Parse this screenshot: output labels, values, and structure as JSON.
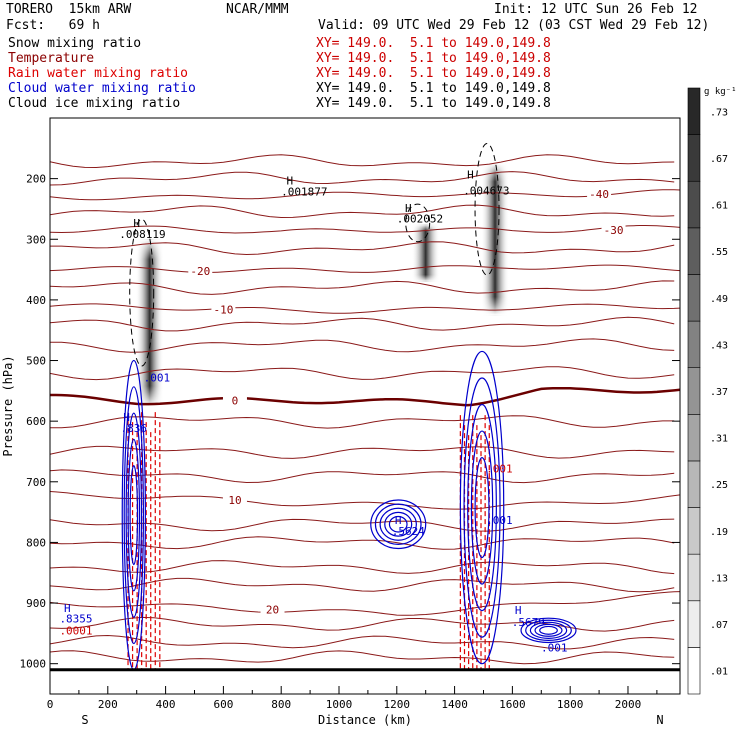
{
  "header": {
    "model": "TORERO  15km ARW",
    "org": "NCAR/MMM",
    "init": "Init: 12 UTC Sun 26 Feb 12",
    "fcst": "Fcst:   69 h",
    "valid": "Valid: 09 UTC Wed 29 Feb 12 (03 CST Wed 29 Feb 12)"
  },
  "fields": [
    {
      "name": "Snow mixing ratio",
      "xy": "XY= 149.0.  5.1 to 149.0,149.8",
      "color": "#000000",
      "xy_color": "#cc0000"
    },
    {
      "name": "Temperature",
      "xy": "XY= 149.0.  5.1 to 149.0,149.8",
      "color": "#8b0000",
      "xy_color": "#cc0000"
    },
    {
      "name": "Rain water mixing ratio",
      "xy": "XY= 149.0.  5.1 to 149.0,149.8",
      "color": "#dd0000",
      "xy_color": "#cc0000"
    },
    {
      "name": "Cloud water mixing ratio",
      "xy": "XY= 149.0.  5.1 to 149.0,149.8",
      "color": "#0000cc",
      "xy_color": "#000000"
    },
    {
      "name": "Cloud ice mixing ratio",
      "xy": "XY= 149.0.  5.1 to 149.0,149.8",
      "color": "#000000",
      "xy_color": "#000000"
    }
  ],
  "chart_data": {
    "type": "contour",
    "xlabel": "Distance (km)",
    "ylabel": "Pressure (hPa)",
    "xlim": [
      0,
      2180
    ],
    "ylim": [
      1050,
      100
    ],
    "xticks": [
      0,
      200,
      400,
      600,
      800,
      1000,
      1200,
      1400,
      1600,
      1800,
      2000
    ],
    "yticks": [
      200,
      300,
      400,
      500,
      600,
      700,
      800,
      900,
      1000
    ],
    "x_end_labels": {
      "left": "S",
      "right": "N"
    },
    "colorbar": {
      "unit": "g kg⁻¹",
      "levels": [
        ".01",
        ".07",
        ".13",
        ".19",
        ".25",
        ".31",
        ".37",
        ".43",
        ".49",
        ".55",
        ".61",
        ".67",
        ".73"
      ]
    },
    "temperature_contours": [
      {
        "label": "-40",
        "p": [
          [
            0,
            230
          ],
          [
            400,
            232
          ],
          [
            800,
            228
          ],
          [
            1200,
            225
          ],
          [
            1600,
            228
          ],
          [
            2180,
            222
          ]
        ],
        "label_at": [
          1900,
          225
        ]
      },
      {
        "label": "-30",
        "p": [
          [
            0,
            285
          ],
          [
            400,
            282
          ],
          [
            800,
            288
          ],
          [
            1200,
            284
          ],
          [
            1600,
            286
          ],
          [
            2180,
            280
          ]
        ],
        "label_at": [
          1950,
          285
        ]
      },
      {
        "label": "-20",
        "p": [
          [
            0,
            348
          ],
          [
            400,
            350
          ],
          [
            800,
            352
          ],
          [
            1200,
            350
          ],
          [
            1600,
            345
          ],
          [
            2180,
            348
          ]
        ],
        "label_at": [
          520,
          352
        ]
      },
      {
        "label": "-10",
        "p": [
          [
            0,
            410
          ],
          [
            400,
            412
          ],
          [
            800,
            418
          ],
          [
            1200,
            418
          ],
          [
            1600,
            412
          ],
          [
            2180,
            410
          ]
        ],
        "label_at": [
          600,
          416
        ]
      },
      {
        "label": "0",
        "p": [
          [
            0,
            560
          ],
          [
            300,
            568
          ],
          [
            600,
            566
          ],
          [
            900,
            566
          ],
          [
            1200,
            568
          ],
          [
            1450,
            570
          ],
          [
            1700,
            550
          ],
          [
            2180,
            548
          ]
        ],
        "label_at": [
          640,
          566
        ]
      },
      {
        "label": "10",
        "p": [
          [
            0,
            720
          ],
          [
            400,
            725
          ],
          [
            800,
            735
          ],
          [
            1100,
            738
          ],
          [
            1500,
            742
          ],
          [
            1800,
            735
          ],
          [
            2180,
            725
          ]
        ],
        "label_at": [
          640,
          730
        ]
      },
      {
        "label": "20",
        "p": [
          [
            0,
            900
          ],
          [
            400,
            905
          ],
          [
            800,
            912
          ],
          [
            1200,
            918
          ],
          [
            1600,
            905
          ],
          [
            2000,
            890
          ],
          [
            2180,
            885
          ]
        ],
        "label_at": [
          770,
          911
        ]
      }
    ],
    "temperature_extra_lines_hpa": [
      172,
      200,
      255,
      315,
      380,
      440,
      475,
      520,
      600,
      650,
      690,
      770,
      800,
      840,
      870,
      935,
      965,
      990
    ],
    "snow_plumes": [
      {
        "x": 345,
        "p_top": 300,
        "p_bottom": 575
      },
      {
        "x": 1540,
        "p_top": 175,
        "p_bottom": 425
      },
      {
        "x": 1300,
        "p_top": 275,
        "p_bottom": 370
      }
    ],
    "cloud_water_cells": [
      {
        "x": [
          250,
          330
        ],
        "p": [
          500,
          1010
        ]
      },
      {
        "x": [
          1420,
          1570
        ],
        "p": [
          485,
          1000
        ]
      },
      {
        "x": [
          1110,
          1300
        ],
        "p": [
          730,
          810
        ]
      },
      {
        "x": [
          1630,
          1820
        ],
        "p": [
          925,
          965
        ]
      }
    ],
    "rain_columns": [
      {
        "x": [
          270,
          380
        ],
        "p": [
          585,
          1010
        ]
      },
      {
        "x": [
          1420,
          1520
        ],
        "p": [
          590,
          1010
        ]
      }
    ],
    "annotations": [
      {
        "text": "H",
        "x": 300,
        "p": 280,
        "color": "#000000"
      },
      {
        "text": ".008119",
        "x": 320,
        "p": 298,
        "color": "#000000"
      },
      {
        "text": "H",
        "x": 830,
        "p": 210,
        "color": "#000000"
      },
      {
        "text": ".001877",
        "x": 880,
        "p": 228,
        "color": "#000000"
      },
      {
        "text": "H",
        "x": 1240,
        "p": 255,
        "color": "#000000"
      },
      {
        "text": ".002052",
        "x": 1280,
        "p": 272,
        "color": "#000000"
      },
      {
        "text": "H",
        "x": 1455,
        "p": 200,
        "color": "#000000"
      },
      {
        "text": ".004673",
        "x": 1510,
        "p": 226,
        "color": "#000000"
      },
      {
        "text": "H",
        "x": 265,
        "p": 600,
        "color": "#0000cc"
      },
      {
        "text": ".836",
        "x": 290,
        "p": 618,
        "color": "#0000cc"
      },
      {
        "text": "H",
        "x": 1205,
        "p": 770,
        "color": "#0000cc"
      },
      {
        "text": ".5624",
        "x": 1240,
        "p": 788,
        "color": "#0000cc"
      },
      {
        "text": "H",
        "x": 60,
        "p": 915,
        "color": "#0000cc"
      },
      {
        "text": ".8355",
        "x": 90,
        "p": 932,
        "color": "#0000cc"
      },
      {
        "text": ".0001",
        "x": 90,
        "p": 952,
        "color": "#cc0000"
      },
      {
        "text": "H",
        "x": 1620,
        "p": 918,
        "color": "#0000cc"
      },
      {
        "text": ".5679",
        "x": 1655,
        "p": 938,
        "color": "#0000cc"
      },
      {
        "text": ".001",
        "x": 1745,
        "p": 980,
        "color": "#0000cc"
      },
      {
        "text": ".001",
        "x": 370,
        "p": 535,
        "color": "#0000cc"
      },
      {
        "text": ".001",
        "x": 1555,
        "p": 770,
        "color": "#0000cc"
      },
      {
        "text": ".001",
        "x": 1555,
        "p": 685,
        "color": "#cc0000"
      }
    ]
  }
}
